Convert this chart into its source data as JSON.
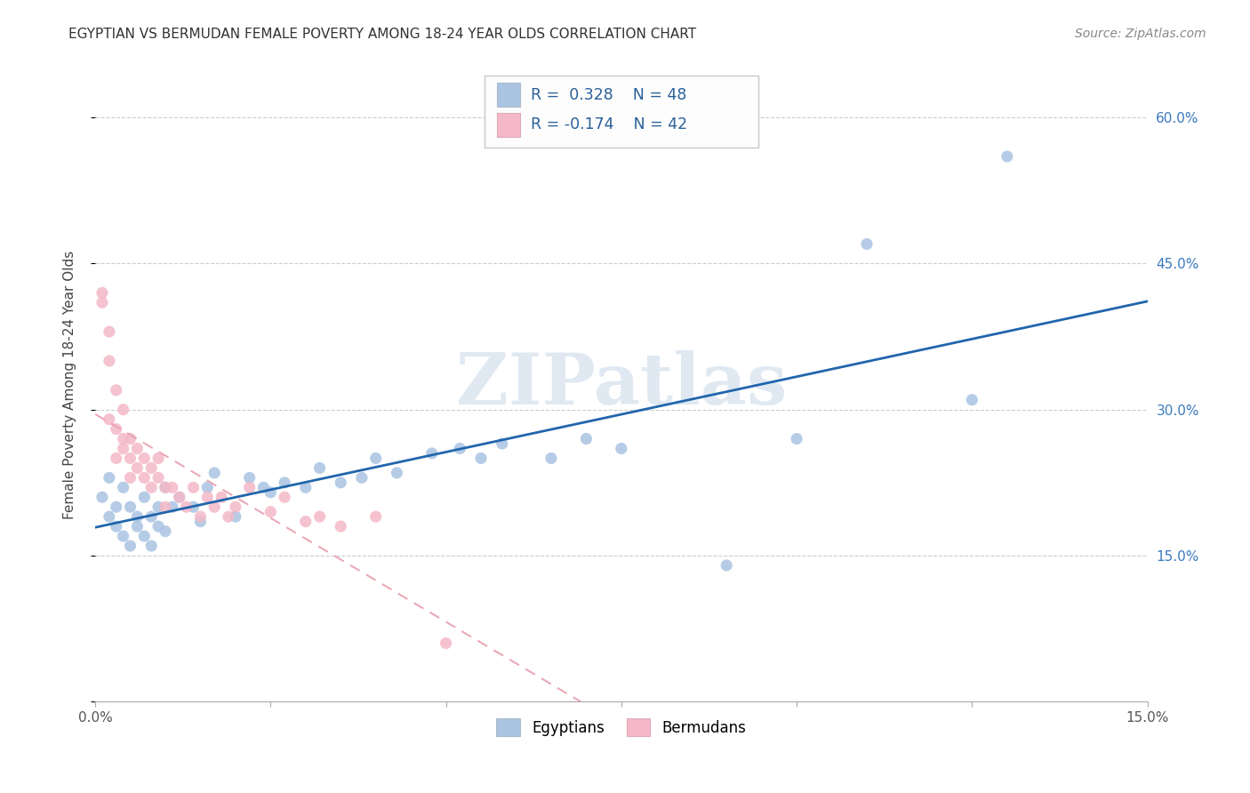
{
  "title": "EGYPTIAN VS BERMUDAN FEMALE POVERTY AMONG 18-24 YEAR OLDS CORRELATION CHART",
  "source": "Source: ZipAtlas.com",
  "ylabel": "Female Poverty Among 18-24 Year Olds",
  "xlim": [
    0.0,
    0.15
  ],
  "ylim": [
    0.0,
    0.65
  ],
  "egyptian_R": 0.328,
  "egyptian_N": 48,
  "bermudan_R": -0.174,
  "bermudan_N": 42,
  "egyptian_color": "#aac4e2",
  "bermudan_color": "#f4b8c8",
  "egyptian_line_color": "#2166ac",
  "bermudan_line_color": "#e8a0b0",
  "grid_color": "#cccccc",
  "watermark": "ZIPatlas",
  "bg_color": "#ffffff",
  "title_color": "#333333",
  "right_axis_color": "#3a7abf",
  "legend_text_color": "#2a6099",
  "egyptians_x": [
    0.001,
    0.002,
    0.002,
    0.003,
    0.003,
    0.004,
    0.004,
    0.005,
    0.005,
    0.006,
    0.006,
    0.007,
    0.007,
    0.008,
    0.008,
    0.009,
    0.009,
    0.01,
    0.01,
    0.011,
    0.012,
    0.014,
    0.015,
    0.016,
    0.017,
    0.02,
    0.022,
    0.024,
    0.025,
    0.027,
    0.03,
    0.032,
    0.035,
    0.038,
    0.04,
    0.043,
    0.048,
    0.052,
    0.055,
    0.058,
    0.065,
    0.07,
    0.075,
    0.09,
    0.1,
    0.11,
    0.125,
    0.13
  ],
  "egyptians_y": [
    0.21,
    0.19,
    0.23,
    0.18,
    0.2,
    0.17,
    0.22,
    0.16,
    0.2,
    0.18,
    0.19,
    0.17,
    0.21,
    0.16,
    0.19,
    0.18,
    0.2,
    0.175,
    0.22,
    0.2,
    0.21,
    0.2,
    0.185,
    0.22,
    0.235,
    0.19,
    0.23,
    0.22,
    0.215,
    0.225,
    0.22,
    0.24,
    0.225,
    0.23,
    0.25,
    0.235,
    0.255,
    0.26,
    0.25,
    0.265,
    0.25,
    0.27,
    0.26,
    0.14,
    0.27,
    0.47,
    0.31,
    0.56
  ],
  "bermudans_x": [
    0.001,
    0.001,
    0.002,
    0.002,
    0.002,
    0.003,
    0.003,
    0.003,
    0.004,
    0.004,
    0.004,
    0.005,
    0.005,
    0.005,
    0.006,
    0.006,
    0.007,
    0.007,
    0.008,
    0.008,
    0.009,
    0.009,
    0.01,
    0.01,
    0.011,
    0.012,
    0.013,
    0.014,
    0.015,
    0.016,
    0.017,
    0.018,
    0.019,
    0.02,
    0.022,
    0.025,
    0.027,
    0.03,
    0.032,
    0.035,
    0.04,
    0.05
  ],
  "bermudans_y": [
    0.42,
    0.41,
    0.38,
    0.35,
    0.29,
    0.32,
    0.28,
    0.25,
    0.3,
    0.27,
    0.26,
    0.27,
    0.25,
    0.23,
    0.26,
    0.24,
    0.25,
    0.23,
    0.24,
    0.22,
    0.25,
    0.23,
    0.22,
    0.2,
    0.22,
    0.21,
    0.2,
    0.22,
    0.19,
    0.21,
    0.2,
    0.21,
    0.19,
    0.2,
    0.22,
    0.195,
    0.21,
    0.185,
    0.19,
    0.18,
    0.19,
    0.06
  ]
}
